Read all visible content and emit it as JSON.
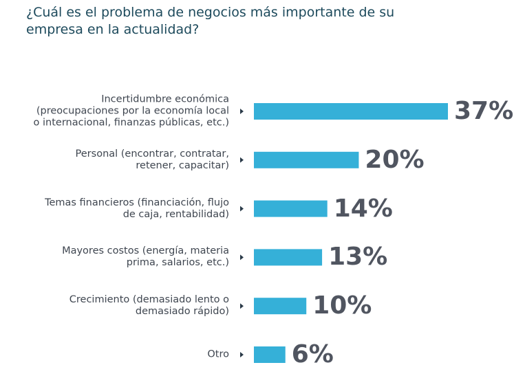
{
  "chart_data": {
    "type": "bar",
    "orientation": "horizontal",
    "title": "¿Cuál es el problema de negocios más importante de su\nempresa en la actualidad?",
    "categories": [
      "Incertidumbre económica\n(preocupaciones por la economía local\no internacional, finanzas públicas, etc.)",
      "Personal (encontrar, contratar,\nretener, capacitar)",
      "Temas financieros (financiación, flujo\nde caja, rentabilidad)",
      "Mayores costos (energía, materia\nprima, salarios, etc.)",
      "Crecimiento (demasiado lento o\ndemasiado rápido)",
      "Otro"
    ],
    "values": [
      37,
      20,
      14,
      13,
      10,
      6
    ],
    "value_labels": [
      "37%",
      "20%",
      "14%",
      "13%",
      "10%",
      "6%"
    ],
    "color": "#35b0d8"
  }
}
